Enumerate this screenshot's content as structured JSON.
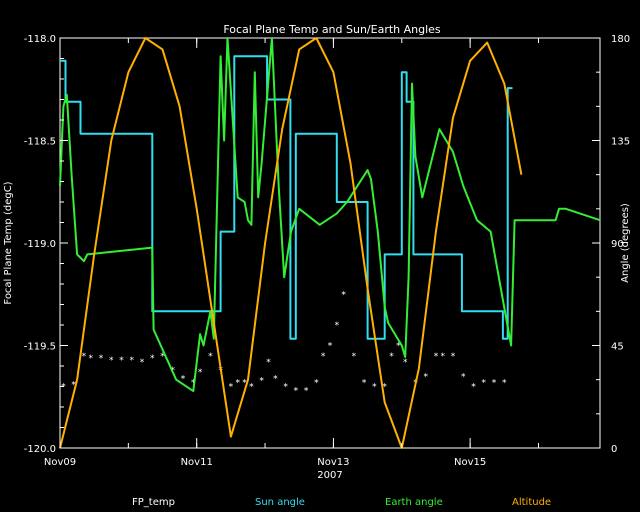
{
  "chart_data": {
    "type": "line",
    "title": "Focal Plane Temp and Sun/Earth Angles",
    "xlabel": "2007",
    "ylabel": "Focal Plane Temp (degC)",
    "y2label": "Angle (degrees)",
    "x_ticks": [
      "Nov09",
      "Nov11",
      "Nov13",
      "Nov15"
    ],
    "x_tick_days": [
      9,
      11,
      13,
      15
    ],
    "xlim_days": [
      9,
      16.9
    ],
    "ylim": [
      -120.0,
      -118.0
    ],
    "y_ticks": [
      "-118.0",
      "-118.5",
      "-119.0",
      "-119.5",
      "-120.0"
    ],
    "y2lim": [
      0,
      180
    ],
    "y2_ticks": [
      "180",
      "135",
      "90",
      "45",
      "0"
    ],
    "grid": false,
    "legend": [
      "FP_temp",
      "Sun angle",
      "Earth angle",
      "Altitude"
    ],
    "colors": {
      "background": "#000000",
      "axes": "#ffffff",
      "fp_temp": "#ffffff",
      "sun_angle": "#33ddee",
      "earth_angle": "#33ee33",
      "altitude": "#ffb000"
    },
    "series": [
      {
        "name": "FP_temp",
        "axis": "left",
        "style": "points",
        "x": [
          9.05,
          9.2,
          9.35,
          9.45,
          9.6,
          9.75,
          9.9,
          10.05,
          10.2,
          10.35,
          10.5,
          10.65,
          10.8,
          10.95,
          11.05,
          11.2,
          11.35,
          11.5,
          11.6,
          11.7,
          11.8,
          11.95,
          12.05,
          12.15,
          12.3,
          12.45,
          12.6,
          12.75,
          12.85,
          12.95,
          13.05,
          13.15,
          13.3,
          13.45,
          13.6,
          13.75,
          13.85,
          13.95,
          14.05,
          14.2,
          14.35,
          14.5,
          14.6,
          14.75,
          14.9,
          15.05,
          15.2,
          15.35,
          15.5
        ],
        "y": [
          -119.7,
          -119.69,
          -119.55,
          -119.56,
          -119.56,
          -119.57,
          -119.57,
          -119.57,
          -119.58,
          -119.56,
          -119.55,
          -119.62,
          -119.66,
          -119.68,
          -119.63,
          -119.55,
          -119.62,
          -119.7,
          -119.68,
          -119.68,
          -119.7,
          -119.67,
          -119.58,
          -119.66,
          -119.7,
          -119.72,
          -119.72,
          -119.68,
          -119.55,
          -119.5,
          -119.4,
          -119.25,
          -119.55,
          -119.68,
          -119.7,
          -119.7,
          -119.55,
          -119.5,
          -119.58,
          -119.68,
          -119.65,
          -119.55,
          -119.55,
          -119.55,
          -119.65,
          -119.7,
          -119.68,
          -119.68,
          -119.68
        ]
      },
      {
        "name": "Sun angle",
        "axis": "right",
        "style": "step",
        "x": [
          9.0,
          9.08,
          9.08,
          9.3,
          9.3,
          10.35,
          10.35,
          11.35,
          11.35,
          11.55,
          11.55,
          12.03,
          12.03,
          12.37,
          12.37,
          12.45,
          12.45,
          13.05,
          13.05,
          13.5,
          13.5,
          13.75,
          13.75,
          14.0,
          14.0,
          14.07,
          14.07,
          14.17,
          14.17,
          14.88,
          14.88,
          15.48,
          15.48,
          15.55,
          15.55,
          15.62
        ],
        "y": [
          170,
          170,
          152,
          152,
          138,
          138,
          60,
          60,
          95,
          95,
          172,
          172,
          153,
          153,
          48,
          48,
          138,
          138,
          108,
          108,
          48,
          48,
          85,
          85,
          165,
          165,
          152,
          152,
          85,
          85,
          60,
          60,
          48,
          48,
          158,
          158
        ]
      },
      {
        "name": "Earth angle",
        "axis": "right",
        "style": "line",
        "x": [
          9.0,
          9.05,
          9.1,
          9.17,
          9.25,
          9.35,
          9.4,
          10.35,
          10.37,
          10.7,
          10.95,
          11.05,
          11.1,
          11.2,
          11.25,
          11.35,
          11.4,
          11.45,
          11.6,
          11.7,
          11.75,
          11.8,
          11.85,
          11.9,
          11.95,
          12.1,
          12.2,
          12.28,
          12.38,
          12.5,
          12.8,
          13.05,
          13.2,
          13.5,
          13.55,
          13.65,
          13.75,
          13.8,
          13.9,
          14.0,
          14.05,
          14.1,
          14.15,
          14.2,
          14.3,
          14.55,
          14.75,
          14.85,
          14.9,
          15.1,
          15.3,
          15.6,
          15.65,
          16.25,
          16.3,
          16.4,
          16.9
        ],
        "y": [
          115,
          150,
          155,
          120,
          85,
          82,
          85,
          88,
          52,
          30,
          25,
          50,
          45,
          60,
          48,
          172,
          135,
          180,
          110,
          108,
          100,
          98,
          165,
          110,
          125,
          180,
          115,
          75,
          95,
          105,
          98,
          103,
          108,
          122,
          118,
          95,
          62,
          55,
          50,
          45,
          40,
          75,
          160,
          128,
          110,
          140,
          130,
          120,
          115,
          100,
          95,
          45,
          100,
          100,
          105,
          105,
          100
        ]
      },
      {
        "name": "Altitude",
        "axis": "right",
        "style": "line",
        "x": [
          9.0,
          9.25,
          9.5,
          9.75,
          10.0,
          10.25,
          10.5,
          10.75,
          11.0,
          11.25,
          11.5,
          11.75,
          12.0,
          12.25,
          12.5,
          12.75,
          13.0,
          13.25,
          13.5,
          13.75,
          14.0,
          14.25,
          14.5,
          14.75,
          15.0,
          15.25,
          15.5,
          15.75
        ],
        "y": [
          0,
          30,
          85,
          135,
          165,
          180,
          175,
          150,
          105,
          55,
          5,
          30,
          90,
          140,
          175,
          180,
          165,
          125,
          70,
          20,
          0,
          35,
          95,
          145,
          170,
          178,
          160,
          120
        ]
      }
    ]
  }
}
